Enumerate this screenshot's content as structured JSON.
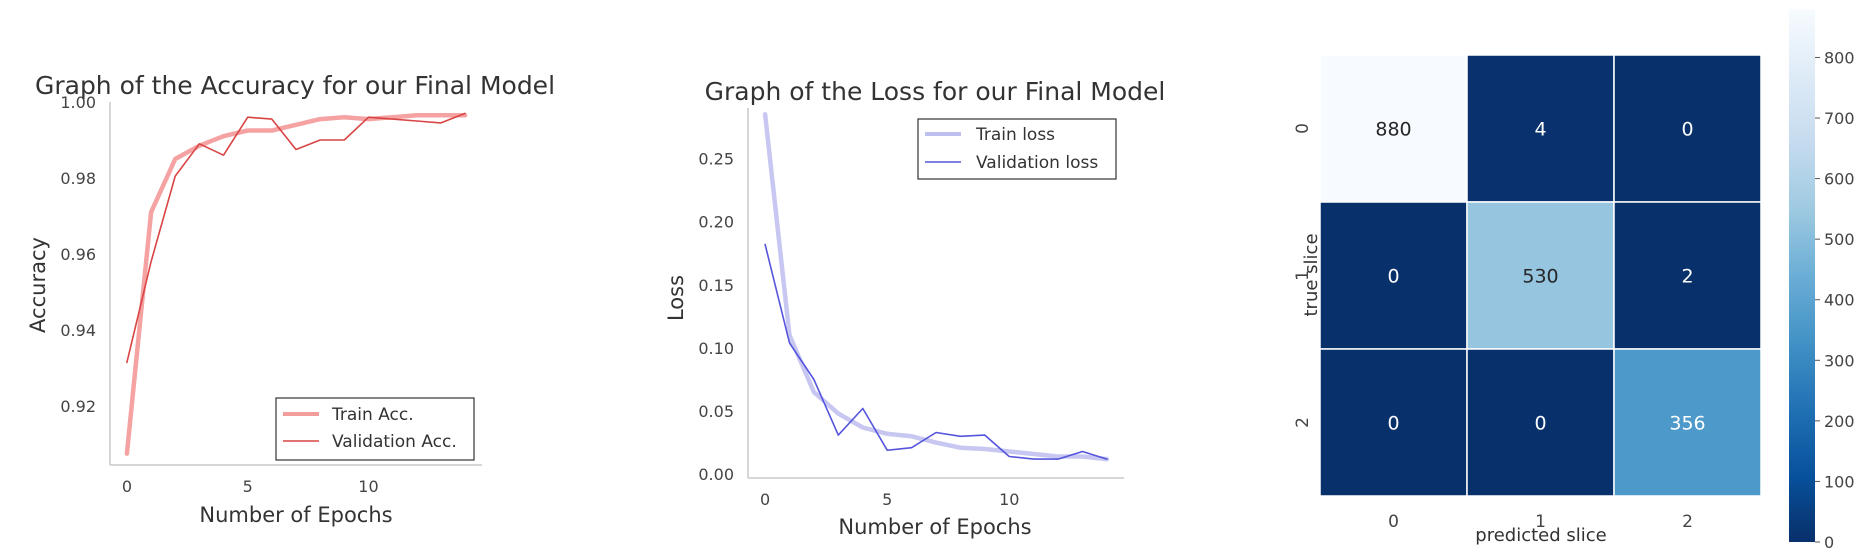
{
  "chart_data": [
    {
      "type": "line",
      "title": "Graph of the Accuracy for our Final Model",
      "xlabel": "Number of Epochs",
      "ylabel": "Accuracy",
      "xlim": [
        -0.7,
        14.7
      ],
      "ylim": [
        0.9045,
        1.0
      ],
      "xticks": [
        0,
        5,
        10
      ],
      "yticks": [
        0.92,
        0.94,
        0.96,
        0.98,
        1.0
      ],
      "ytick_labels": [
        "0.92",
        "0.94",
        "0.96",
        "0.98",
        "1.00"
      ],
      "grid": false,
      "legend_position": "lower-right",
      "x": [
        0,
        1,
        2,
        3,
        4,
        5,
        6,
        7,
        8,
        9,
        10,
        11,
        12,
        13,
        14
      ],
      "series": [
        {
          "name": "Train Acc.",
          "color": "#f28b8b",
          "style": "thick",
          "values": [
            0.9075,
            0.971,
            0.985,
            0.9885,
            0.991,
            0.9925,
            0.9925,
            0.994,
            0.9955,
            0.996,
            0.9955,
            0.996,
            0.9965,
            0.9965,
            0.9965
          ]
        },
        {
          "name": "Validation Acc.",
          "color": "#d94545",
          "style": "thin",
          "values": [
            0.9315,
            0.958,
            0.9805,
            0.989,
            0.986,
            0.996,
            0.9955,
            0.9875,
            0.99,
            0.99,
            0.996,
            0.9955,
            0.995,
            0.9945,
            0.997
          ]
        }
      ]
    },
    {
      "type": "line",
      "title": "Graph of the Loss for our Final Model",
      "xlabel": "Number of Epochs",
      "ylabel": "Loss",
      "xlim": [
        -0.7,
        14.7
      ],
      "ylim": [
        -0.003,
        0.29
      ],
      "xticks": [
        0,
        5,
        10
      ],
      "yticks": [
        0.0,
        0.05,
        0.1,
        0.15,
        0.2,
        0.25
      ],
      "ytick_labels": [
        "0.00",
        "0.05",
        "0.10",
        "0.15",
        "0.20",
        "0.25"
      ],
      "grid": false,
      "legend_position": "upper-right",
      "x": [
        0,
        1,
        2,
        3,
        4,
        5,
        6,
        7,
        8,
        9,
        10,
        11,
        12,
        13,
        14
      ],
      "series": [
        {
          "name": "Train loss",
          "color": "#b9b9ee",
          "style": "thick",
          "values": [
            0.285,
            0.11,
            0.065,
            0.048,
            0.037,
            0.032,
            0.03,
            0.025,
            0.021,
            0.02,
            0.018,
            0.016,
            0.014,
            0.014,
            0.012
          ]
        },
        {
          "name": "Validation loss",
          "color": "#5555dd",
          "style": "thin",
          "values": [
            0.182,
            0.104,
            0.075,
            0.031,
            0.052,
            0.019,
            0.021,
            0.033,
            0.03,
            0.031,
            0.014,
            0.012,
            0.012,
            0.018,
            0.012
          ]
        }
      ]
    },
    {
      "type": "heatmap",
      "xlabel": "predicted slice",
      "ylabel": "true slice",
      "x_categories": [
        "0",
        "1",
        "2"
      ],
      "y_categories": [
        "0",
        "1",
        "2"
      ],
      "values": [
        [
          880,
          4,
          0
        ],
        [
          0,
          530,
          2
        ],
        [
          0,
          0,
          356
        ]
      ],
      "colormap": "Blues",
      "colorbar_range": [
        0,
        880
      ],
      "colorbar_ticks": [
        0,
        100,
        200,
        300,
        400,
        500,
        600,
        700,
        800
      ],
      "colorbar_position": "right"
    }
  ]
}
